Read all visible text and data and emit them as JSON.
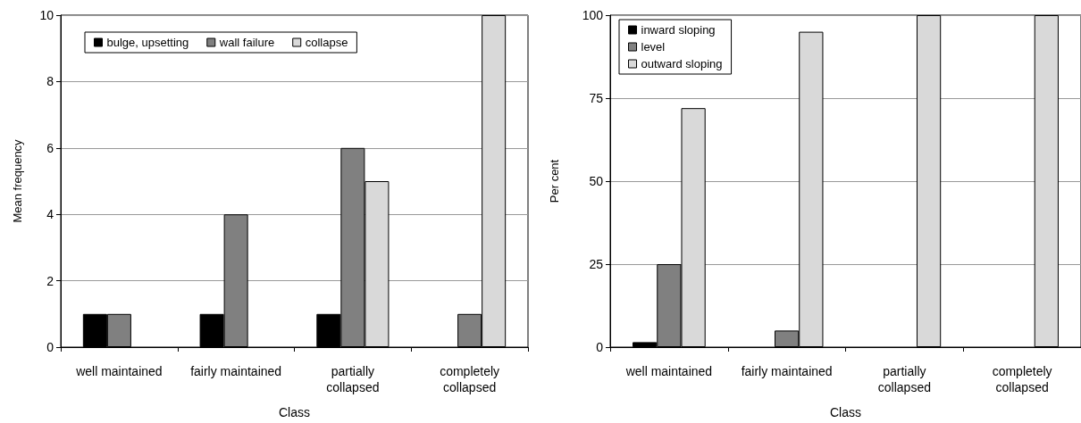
{
  "chart_data": [
    {
      "type": "bar",
      "xlabel": "Class",
      "ylabel": "Mean frequency",
      "categories": [
        "well maintained",
        "fairly maintained",
        "partially\ncollapsed",
        "completely\ncollapsed"
      ],
      "series": [
        {
          "name": "bulge, upsetting",
          "color": "#000000",
          "values": [
            1,
            1,
            1,
            0
          ]
        },
        {
          "name": "wall failure",
          "color": "#808080",
          "values": [
            1,
            4,
            6,
            1
          ]
        },
        {
          "name": "collapse",
          "color": "#d9d9d9",
          "values": [
            0,
            0,
            5,
            10
          ]
        }
      ],
      "ylim": [
        0,
        10
      ],
      "yticks": [
        0,
        2,
        4,
        6,
        8,
        10
      ],
      "grid": "y",
      "legend": "top left"
    },
    {
      "type": "bar",
      "xlabel": "Class",
      "ylabel": "Per cent",
      "categories": [
        "well maintained",
        "fairly maintained",
        "partially\ncollapsed",
        "completely\ncollapsed"
      ],
      "series": [
        {
          "name": "inward sloping",
          "color": "#000000",
          "values": [
            1.5,
            0,
            0,
            0
          ]
        },
        {
          "name": "level",
          "color": "#808080",
          "values": [
            25,
            5,
            0,
            0
          ]
        },
        {
          "name": "outward sloping",
          "color": "#d9d9d9",
          "values": [
            72,
            95,
            100,
            100
          ]
        }
      ],
      "ylim": [
        0,
        100
      ],
      "yticks": [
        0,
        25,
        50,
        75,
        100
      ],
      "grid": "y",
      "legend": "top left"
    }
  ]
}
